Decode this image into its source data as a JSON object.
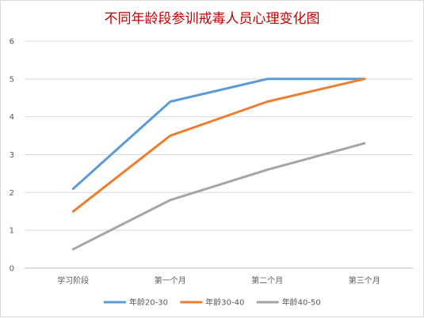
{
  "chart_data": {
    "type": "line",
    "title": "不同年龄段参训戒毒人员心理变化图",
    "xlabel": "",
    "ylabel": "",
    "categories": [
      "学习阶段",
      "第一个月",
      "第二个月",
      "第三个月"
    ],
    "ylim": [
      0,
      6
    ],
    "yticks": [
      0,
      1,
      2,
      3,
      4,
      5,
      6
    ],
    "grid": true,
    "legend_position": "bottom",
    "series": [
      {
        "name": "年龄20-30",
        "color": "#5b9bd5",
        "values": [
          2.1,
          4.4,
          5.0,
          5.0
        ]
      },
      {
        "name": "年龄30-40",
        "color": "#ed7d31",
        "values": [
          1.5,
          3.5,
          4.4,
          5.0
        ]
      },
      {
        "name": "年龄40-50",
        "color": "#a5a5a5",
        "values": [
          0.5,
          1.8,
          2.6,
          3.3
        ]
      }
    ]
  }
}
